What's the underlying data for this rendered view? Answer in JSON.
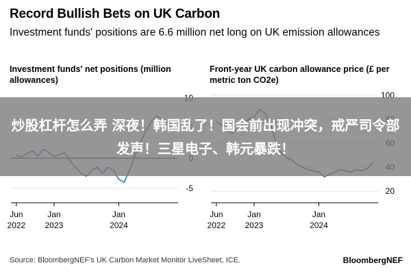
{
  "header": {
    "title": "Record Bullish Bets on UK Carbon",
    "subtitle": "Investment funds' positions are 6.6 million net long on UK emission allowances"
  },
  "overlay_text": "炒股杠杆怎么弄 深夜！韩国乱了！国会前出现冲突，戒严司令部发声！三星电子、韩元暴跌！",
  "footer": {
    "source": "Source: BloombergNEF's UK Carbon Market Monitor LiveSheet, ICE.",
    "brand": "BloombergNEF"
  },
  "colors": {
    "line": "#1976d2",
    "axis": "#000000",
    "overlay": "#787878"
  },
  "chart_data": [
    {
      "type": "line",
      "title": "Investment funds' net positions (million allowances)",
      "x_ticks": [
        {
          "date": "2022-06",
          "label": "Jun\n2022"
        },
        {
          "date": "2023-01",
          "label": "Jan\n2023"
        },
        {
          "date": "2024-01",
          "label": "Jan\n2024"
        }
      ],
      "y_ticks": [
        10,
        5,
        0,
        -5
      ],
      "ylim": [
        -6.5,
        11.5
      ],
      "y_axis_side": "right",
      "series": [
        {
          "color": "#1976d2",
          "x": [
            "2022-06",
            "2022-07",
            "2022-08",
            "2022-09",
            "2022-10",
            "2022-11",
            "2022-12",
            "2023-01",
            "2023-02",
            "2023-03",
            "2023-04",
            "2023-05",
            "2023-06",
            "2023-07",
            "2023-08",
            "2023-09",
            "2023-10",
            "2023-11",
            "2023-12",
            "2024-01",
            "2024-02",
            "2024-03",
            "2024-04",
            "2024-05",
            "2024-06",
            "2024-07",
            "2024-08",
            "2024-09",
            "2024-10",
            "2024-11"
          ],
          "y": [
            0.5,
            0.2,
            0.8,
            1.2,
            0.4,
            1.5,
            1.0,
            0.3,
            0.6,
            0.9,
            -0.5,
            -1.5,
            -2.5,
            -3.0,
            -2.0,
            -1.5,
            -2.5,
            -1.5,
            -2.0,
            -3.5,
            -4.0,
            -2.0,
            0.5,
            2.5,
            4.5,
            6.0,
            7.0,
            6.6,
            6.0,
            6.6
          ]
        }
      ]
    },
    {
      "type": "line",
      "title": "Front-year UK carbon allowance price (£ per metric ton CO2e)",
      "x_ticks": [
        {
          "date": "2022-06",
          "label": "Jun\n2022"
        },
        {
          "date": "2023-01",
          "label": "Jan\n2023"
        },
        {
          "date": "2024-01",
          "label": "Jan\n2024"
        }
      ],
      "y_ticks": [
        100,
        80,
        60,
        40,
        20
      ],
      "ylim": [
        15,
        105
      ],
      "y_axis_side": "right",
      "series": [
        {
          "color": "#1976d2",
          "x": [
            "2022-06",
            "2022-07",
            "2022-08",
            "2022-09",
            "2022-10",
            "2022-11",
            "2022-12",
            "2023-01",
            "2023-02",
            "2023-03",
            "2023-04",
            "2023-05",
            "2023-06",
            "2023-07",
            "2023-08",
            "2023-09",
            "2023-10",
            "2023-11",
            "2023-12",
            "2024-01",
            "2024-02",
            "2024-03",
            "2024-04",
            "2024-05",
            "2024-06",
            "2024-07",
            "2024-08",
            "2024-09",
            "2024-10",
            "2024-11"
          ],
          "y": [
            78,
            75,
            70,
            68,
            72,
            76,
            80,
            82,
            88,
            85,
            76,
            62,
            52,
            48,
            46,
            42,
            40,
            38,
            37,
            36,
            32,
            34,
            36,
            38,
            37,
            36,
            38,
            37,
            39,
            44
          ]
        }
      ]
    }
  ]
}
